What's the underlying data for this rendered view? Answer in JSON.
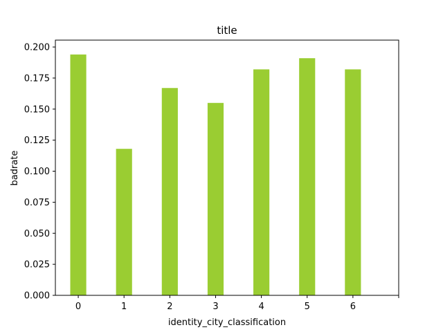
{
  "chart_data": {
    "type": "bar",
    "title": "title",
    "xlabel": "identity_city_classification",
    "ylabel": "badrate",
    "categories": [
      "0",
      "1",
      "2",
      "3",
      "4",
      "5",
      "6"
    ],
    "values": [
      0.194,
      0.118,
      0.167,
      0.155,
      0.182,
      0.191,
      0.182
    ],
    "ylim": [
      0,
      0.2
    ],
    "yticks": [
      "0.000",
      "0.025",
      "0.050",
      "0.075",
      "0.100",
      "0.125",
      "0.150",
      "0.175",
      "0.200"
    ],
    "bar_color": "#9acd32",
    "grid": false,
    "legend": "none"
  }
}
